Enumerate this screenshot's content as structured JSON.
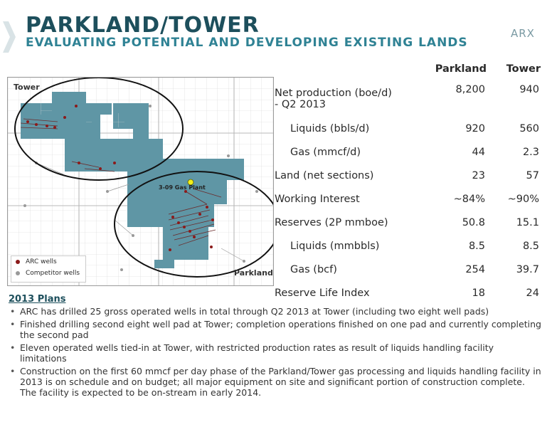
{
  "header": {
    "title": "PARKLAND/TOWER",
    "subtitle": "EVALUATING POTENTIAL AND DEVELOPING EXISTING LANDS",
    "logo": "ARX"
  },
  "map": {
    "tower_label": "Tower",
    "parkland_label": "Parkland",
    "plant_label": "3-09 Gas Plant",
    "legend": [
      {
        "label": "ARC wells",
        "color": "#8b1a1a"
      },
      {
        "label": "Competitor wells",
        "color": "#999999"
      }
    ]
  },
  "table": {
    "columns": [
      "Parkland",
      "Tower"
    ],
    "rows": [
      {
        "label": "Net production (boe/d)",
        "label2": "- Q2 2013",
        "parkland": "8,200",
        "tower": "940"
      },
      {
        "label": "Liquids (bbls/d)",
        "parkland": "920",
        "tower": "560",
        "sub": true
      },
      {
        "label": "Gas (mmcf/d)",
        "parkland": "44",
        "tower": "2.3",
        "sub": true
      },
      {
        "label": "Land (net sections)",
        "parkland": "23",
        "tower": "57"
      },
      {
        "label": "Working Interest",
        "parkland": "~84%",
        "tower": "~90%"
      },
      {
        "label": "Reserves (2P mmboe)",
        "parkland": "50.8",
        "tower": "15.1"
      },
      {
        "label": "Liquids (mmbbls)",
        "parkland": "8.5",
        "tower": "8.5",
        "sub": true
      },
      {
        "label": "Gas (bcf)",
        "parkland": "254",
        "tower": "39.7",
        "sub": true
      },
      {
        "label": "Reserve Life Index",
        "parkland": "18",
        "tower": "24"
      }
    ]
  },
  "plans": {
    "title": "2013 Plans",
    "items": [
      "ARC has drilled 25 gross operated wells in total through Q2 2013 at Tower (including two eight well pads)",
      "Finished drilling second eight well pad at Tower; completion operations finished on one pad and currently completing the second pad",
      "Eleven operated wells tied-in at Tower, with restricted production rates as result of liquids handling facility limitations",
      "Construction on the first 60 mmcf per day phase of the Parkland/Tower gas processing and liquids handling facility in 2013 is on schedule and on budget; all major equipment on site and significant portion of construction complete.  The facility is expected to be on-stream in early 2014."
    ]
  },
  "colors": {
    "title": "#1d4f5c",
    "subtitle": "#2f8294",
    "land": "#5f96a5"
  }
}
